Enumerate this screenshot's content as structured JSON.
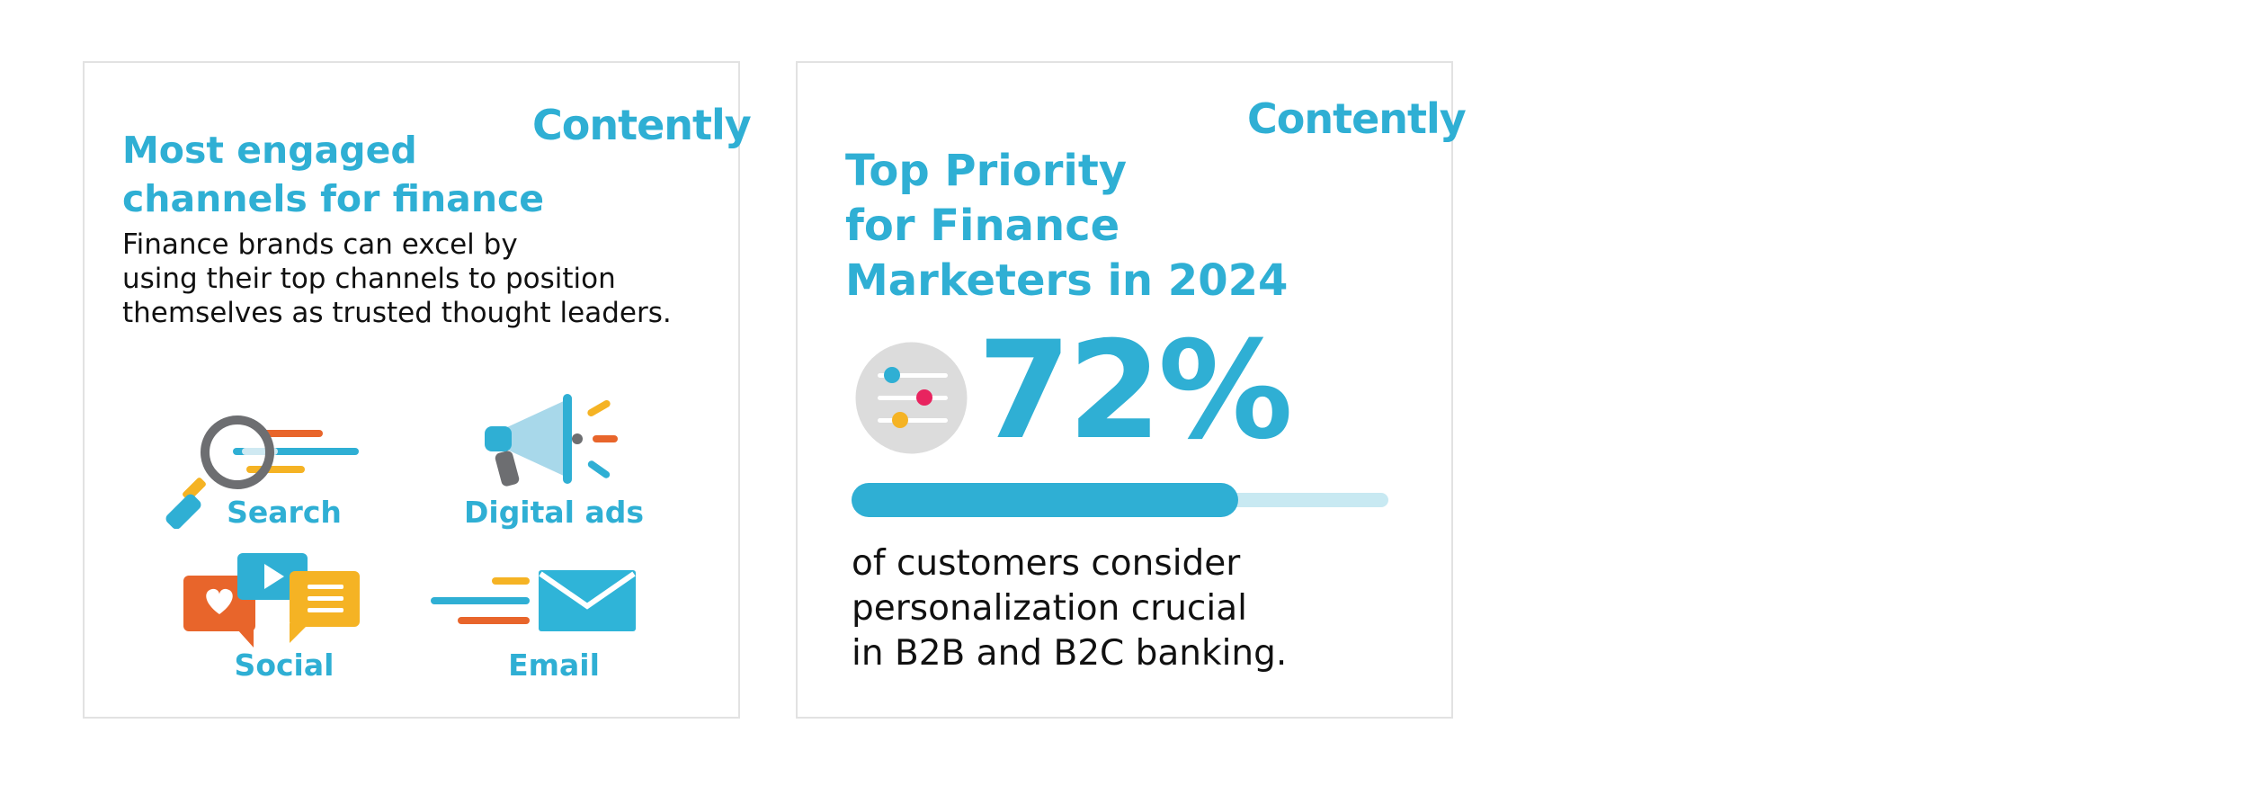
{
  "card1": {
    "logo": "Contently",
    "title_line1": "Most engaged",
    "title_line2": "channels for finance",
    "desc_line1": "Finance brands can excel by",
    "desc_line2": "using their top channels to position",
    "desc_line3": "themselves as trusted thought leaders.",
    "channels": [
      {
        "label": "Search",
        "icon": "magnifier-icon"
      },
      {
        "label": "Digital ads",
        "icon": "megaphone-icon"
      },
      {
        "label": "Social",
        "icon": "chat-bubbles-icon"
      },
      {
        "label": "Email",
        "icon": "envelope-icon"
      }
    ]
  },
  "card2": {
    "logo": "Contently",
    "title_line1": "Top Priority",
    "title_line2": "for Finance",
    "title_line3": "Marketers in 2024",
    "percent": "72%",
    "progress": 0.72,
    "desc_line1": "of customers consider",
    "desc_line2": "personalization crucial",
    "desc_line3": "in B2B and B2C banking.",
    "icon": "sliders-icon"
  },
  "colors": {
    "accent": "#2fafd4",
    "orange": "#e8652b",
    "yellow": "#f5b324",
    "gray": "#6d6e71",
    "pink": "#e8245f"
  }
}
